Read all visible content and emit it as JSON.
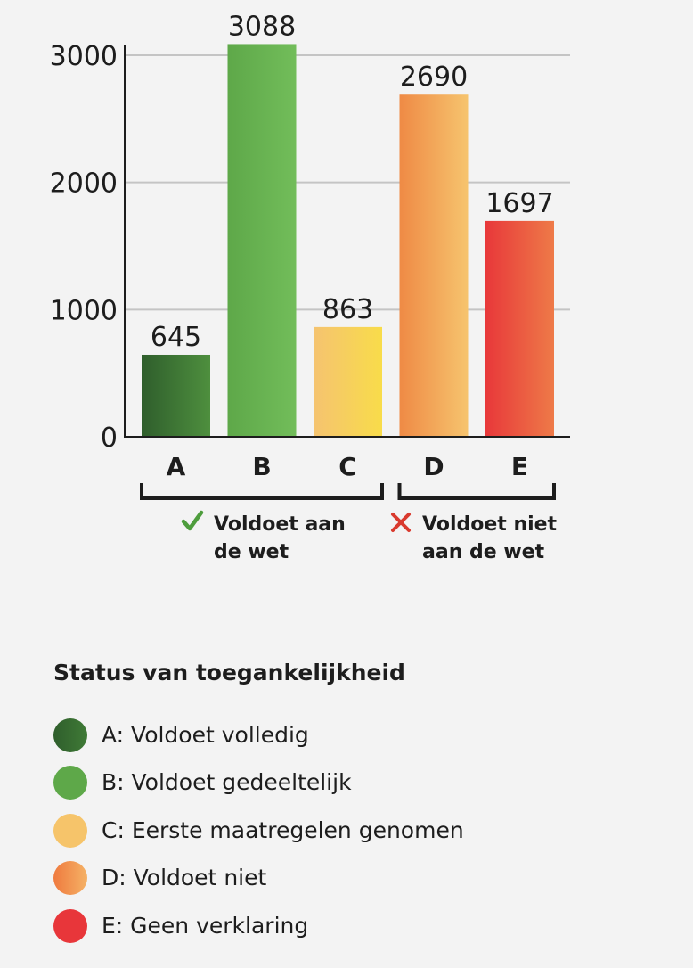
{
  "chart_data": {
    "type": "bar",
    "categories": [
      "A",
      "B",
      "C",
      "D",
      "E"
    ],
    "values": [
      645,
      3088,
      863,
      2690,
      1697
    ],
    "ylim": [
      0,
      3000
    ],
    "yticks": [
      "0",
      "1000",
      "2000",
      "3000"
    ],
    "value_labels": [
      "645",
      "3088",
      "863",
      "2690",
      "1697"
    ],
    "grid": true,
    "bar_colors": [
      [
        "#2f5e2c",
        "#4e8f3e"
      ],
      [
        "#5ea849",
        "#72bd5a"
      ],
      [
        "#f5c370",
        "#f8dc4a"
      ],
      [
        "#ef8a45",
        "#f6c46e"
      ],
      [
        "#e8383a",
        "#ee7a48"
      ]
    ],
    "groups": [
      {
        "label_line1": "Voldoet aan",
        "label_line2": "de wet",
        "marker": "check-icon",
        "marker_color": "#4e9d3d",
        "from": 0,
        "to": 2
      },
      {
        "label_line1": "Voldoet niet",
        "label_line2": "aan de wet",
        "marker": "cross-icon",
        "marker_color": "#d93a2e",
        "from": 3,
        "to": 4
      }
    ]
  },
  "legend": {
    "title": "Status van toegankelijkheid",
    "items": [
      {
        "label": "A: Voldoet volledig",
        "colors": [
          "#2f5e2c",
          "#3f7a36"
        ]
      },
      {
        "label": "B: Voldoet gedeeltelijk",
        "colors": [
          "#5ea849",
          "#5ea849"
        ]
      },
      {
        "label": "C: Eerste maatregelen genomen",
        "colors": [
          "#f6c46a",
          "#f6c46a"
        ]
      },
      {
        "label": "D: Voldoet niet",
        "colors": [
          "#ef7a3e",
          "#f5b266"
        ]
      },
      {
        "label": "E: Geen verklaring",
        "colors": [
          "#e8363a",
          "#e8363a"
        ]
      }
    ]
  }
}
